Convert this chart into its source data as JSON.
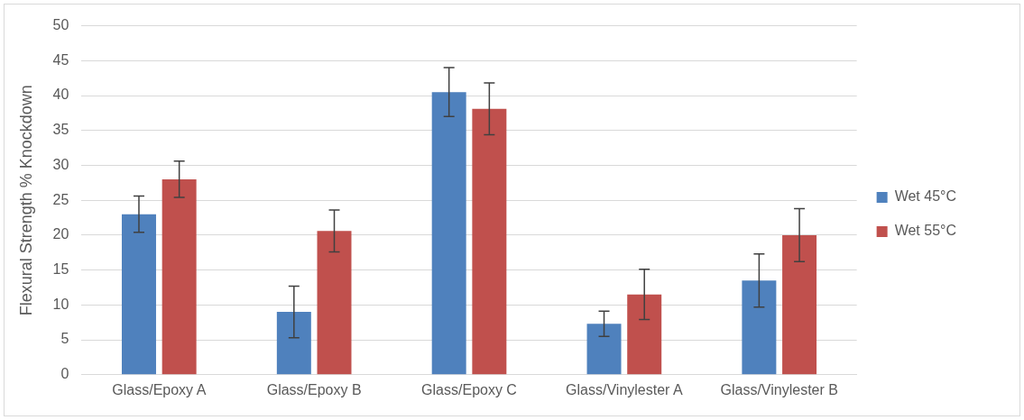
{
  "chart_data": {
    "type": "bar",
    "ylabel": "Flexural Strength % Knockdown",
    "categories": [
      "Glass/Epoxy A",
      "Glass/Epoxy B",
      "Glass/Epoxy C",
      "Glass/Vinylester A",
      "Glass/Vinylester B"
    ],
    "series": [
      {
        "name": "Wet 45°C",
        "color": "#4f81bd",
        "values": [
          23,
          9,
          40.5,
          7.3,
          13.5
        ],
        "errors": [
          2.6,
          3.7,
          3.5,
          1.8,
          3.8
        ]
      },
      {
        "name": "Wet 55°C",
        "color": "#c0504d",
        "values": [
          28,
          20.6,
          38.1,
          11.5,
          20
        ],
        "errors": [
          2.6,
          3,
          3.7,
          3.6,
          3.8
        ]
      }
    ],
    "ylim": [
      0,
      50
    ],
    "yticks": [
      0,
      5,
      10,
      15,
      20,
      25,
      30,
      35,
      40,
      45,
      50
    ],
    "grid": "y",
    "legend": "right"
  }
}
